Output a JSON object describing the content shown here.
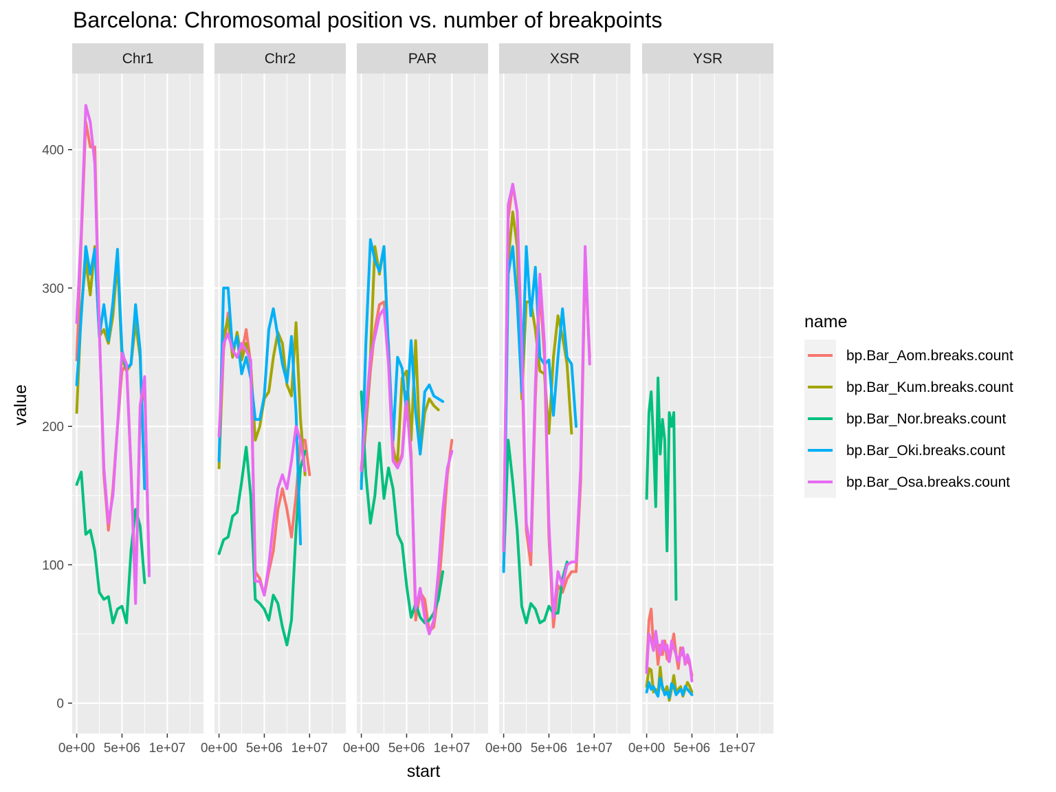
{
  "chart_data": {
    "type": "line",
    "title": "Barcelona: Chromosomal position vs. number of breakpoints",
    "xlabel": "start",
    "ylabel": "value",
    "ylim": [
      -22,
      455
    ],
    "xlim": [
      -500000,
      14000000
    ],
    "y_ticks": [
      0,
      100,
      200,
      300,
      400
    ],
    "y_tick_labels": [
      "0",
      "100",
      "200",
      "300",
      "400"
    ],
    "x_ticks": [
      0,
      5000000,
      10000000
    ],
    "x_tick_labels": [
      "0e+00",
      "5e+06",
      "1e+07"
    ],
    "grid": true,
    "legend": {
      "title": "name",
      "position": "right"
    },
    "facets": [
      "Chr1",
      "Chr2",
      "PAR",
      "XSR",
      "YSR"
    ],
    "series": [
      {
        "name": "bp.Bar_Aom.breaks.count",
        "color": "#F8766D"
      },
      {
        "name": "bp.Bar_Kum.breaks.count",
        "color": "#A3A500"
      },
      {
        "name": "bp.Bar_Nor.breaks.count",
        "color": "#00BF7D"
      },
      {
        "name": "bp.Bar_Oki.breaks.count",
        "color": "#00B0F6"
      },
      {
        "name": "bp.Bar_Osa.breaks.count",
        "color": "#E76BF3"
      }
    ],
    "panels": [
      {
        "facet": "Chr1",
        "x": [
          0,
          500000,
          1000000,
          1500000,
          2000000,
          2500000,
          3000000,
          3500000,
          4000000,
          4500000,
          5000000,
          5500000,
          6000000,
          6500000,
          7000000,
          7500000,
          8000000,
          8500000,
          9000000,
          9500000,
          10000000
        ],
        "values": [
          [
            248,
            335,
            420,
            402,
            402,
            270,
            165,
            125,
            155,
            200,
            240,
            245,
            170,
            80,
            210,
            230,
            95,
            null,
            null,
            null,
            null
          ],
          [
            210,
            285,
            320,
            295,
            330,
            265,
            270,
            260,
            280,
            320,
            250,
            240,
            245,
            275,
            250,
            155,
            null,
            null,
            null,
            null,
            null
          ],
          [
            158,
            167,
            122,
            125,
            110,
            80,
            75,
            77,
            58,
            68,
            70,
            58,
            110,
            140,
            128,
            87,
            null,
            null,
            null,
            null,
            null
          ],
          [
            230,
            280,
            330,
            310,
            328,
            265,
            288,
            262,
            290,
            328,
            255,
            242,
            245,
            288,
            255,
            155,
            null,
            null,
            null,
            null,
            null
          ],
          [
            275,
            340,
            432,
            420,
            390,
            270,
            170,
            130,
            150,
            200,
            253,
            245,
            168,
            72,
            215,
            236,
            92,
            null,
            null,
            null,
            null
          ]
        ]
      },
      {
        "facet": "Chr2",
        "x": [
          0,
          500000,
          1000000,
          1500000,
          2000000,
          2500000,
          3000000,
          3500000,
          4000000,
          4500000,
          5000000,
          5500000,
          6000000,
          6500000,
          7000000,
          7500000,
          8000000,
          8500000,
          9000000,
          9500000,
          10000000,
          10500000,
          11000000,
          11500000,
          12000000,
          12500000,
          13000000
        ],
        "values": [
          [
            175,
            255,
            282,
            255,
            250,
            252,
            270,
            245,
            95,
            90,
            78,
            95,
            110,
            140,
            155,
            140,
            120,
            150,
            190,
            190,
            165,
            null,
            null,
            null,
            null,
            null,
            null
          ],
          [
            170,
            265,
            278,
            250,
            268,
            248,
            260,
            245,
            190,
            200,
            220,
            225,
            250,
            268,
            260,
            230,
            222,
            275,
            205,
            165,
            null,
            null,
            null,
            null,
            null,
            null,
            null
          ],
          [
            108,
            118,
            120,
            135,
            138,
            160,
            185,
            150,
            75,
            72,
            68,
            60,
            78,
            72,
            55,
            42,
            60,
            125,
            170,
            182,
            null,
            null,
            null,
            null,
            null,
            null,
            null
          ],
          [
            175,
            300,
            300,
            255,
            265,
            238,
            250,
            235,
            205,
            205,
            222,
            270,
            285,
            265,
            245,
            232,
            265,
            210,
            115,
            null,
            null,
            null,
            null,
            null,
            null,
            null,
            null
          ],
          [
            193,
            260,
            267,
            255,
            250,
            260,
            255,
            248,
            88,
            88,
            78,
            100,
            130,
            155,
            165,
            155,
            175,
            200,
            190,
            168,
            null,
            null,
            null,
            null,
            null,
            null,
            null
          ]
        ]
      },
      {
        "facet": "PAR",
        "x": [
          0,
          500000,
          1000000,
          1500000,
          2000000,
          2500000,
          3000000,
          3500000,
          4000000,
          4500000,
          5000000,
          5500000,
          6000000,
          6500000,
          7000000,
          7500000,
          8000000,
          8500000,
          9000000,
          9500000,
          10000000,
          10500000,
          11000000,
          11500000,
          12000000,
          12500000,
          13000000
        ],
        "values": [
          [
            170,
            200,
            240,
            270,
            288,
            290,
            260,
            185,
            170,
            180,
            225,
            180,
            60,
            80,
            75,
            52,
            55,
            80,
            120,
            165,
            190,
            null,
            null,
            null,
            null,
            null,
            null
          ],
          [
            160,
            200,
            250,
            330,
            310,
            330,
            250,
            180,
            175,
            235,
            240,
            190,
            262,
            180,
            210,
            220,
            215,
            212,
            null,
            null,
            null,
            null,
            null,
            null,
            null,
            null,
            null
          ],
          [
            225,
            165,
            130,
            150,
            188,
            148,
            170,
            155,
            122,
            115,
            85,
            62,
            72,
            62,
            58,
            60,
            65,
            75,
            95,
            null,
            null,
            null,
            null,
            null,
            null,
            null,
            null
          ],
          [
            155,
            260,
            335,
            320,
            312,
            330,
            255,
            190,
            250,
            242,
            210,
            262,
            210,
            180,
            225,
            230,
            222,
            220,
            218,
            null,
            null,
            null,
            null,
            null,
            null,
            null,
            null
          ],
          [
            168,
            210,
            250,
            265,
            280,
            285,
            245,
            175,
            170,
            178,
            218,
            175,
            68,
            83,
            62,
            50,
            60,
            95,
            140,
            170,
            182,
            null,
            null,
            null,
            null,
            null,
            null
          ]
        ]
      },
      {
        "facet": "XSR",
        "x": [
          0,
          500000,
          1000000,
          1500000,
          2000000,
          2500000,
          3000000,
          3500000,
          4000000,
          4500000,
          5000000,
          5500000,
          6000000,
          6500000,
          7000000,
          7500000,
          8000000,
          8500000,
          9000000,
          9500000,
          10000000,
          10500000,
          11000000,
          11500000,
          12000000
        ],
        "values": [
          [
            115,
            350,
            375,
            355,
            250,
            125,
            100,
            220,
            300,
            250,
            120,
            55,
            85,
            80,
            90,
            95,
            95,
            160,
            320,
            250,
            null,
            null,
            null,
            null,
            null
          ],
          [
            110,
            320,
            355,
            330,
            220,
            290,
            290,
            270,
            240,
            238,
            195,
            250,
            280,
            265,
            245,
            195,
            null,
            null,
            null,
            null,
            null,
            null,
            null,
            null,
            null
          ],
          [
            98,
            190,
            160,
            125,
            70,
            58,
            72,
            68,
            58,
            60,
            70,
            65,
            65,
            90,
            102,
            null,
            null,
            null,
            null,
            null,
            null,
            null,
            null,
            null,
            null
          ],
          [
            95,
            310,
            330,
            290,
            225,
            330,
            280,
            315,
            250,
            245,
            248,
            208,
            250,
            285,
            250,
            245,
            200,
            null,
            null,
            null,
            null,
            null,
            null,
            null,
            null
          ],
          [
            110,
            360,
            375,
            355,
            260,
            130,
            110,
            230,
            310,
            260,
            130,
            62,
            95,
            85,
            100,
            102,
            102,
            170,
            330,
            245,
            null,
            null,
            null,
            null,
            null
          ]
        ]
      },
      {
        "facet": "YSR",
        "x": [
          0,
          250000,
          500000,
          750000,
          1000000,
          1250000,
          1500000,
          1750000,
          2000000,
          2250000,
          2500000,
          2750000,
          3000000,
          3250000,
          3500000,
          3750000,
          4000000,
          4250000,
          4500000,
          4750000,
          5000000
        ],
        "values": [
          [
            25,
            60,
            68,
            40,
            48,
            28,
            42,
            35,
            45,
            32,
            30,
            40,
            50,
            35,
            25,
            40,
            35,
            32,
            30,
            28,
            20
          ],
          [
            12,
            25,
            24,
            8,
            10,
            6,
            26,
            10,
            8,
            12,
            2,
            10,
            20,
            8,
            10,
            12,
            5,
            10,
            15,
            12,
            8
          ],
          [
            148,
            210,
            225,
            190,
            142,
            235,
            180,
            205,
            190,
            110,
            210,
            200,
            210,
            75,
            null,
            null,
            null,
            null,
            null,
            null,
            null
          ],
          [
            8,
            15,
            10,
            12,
            8,
            5,
            18,
            12,
            6,
            8,
            4,
            14,
            12,
            6,
            8,
            10,
            6,
            12,
            10,
            8,
            6
          ],
          [
            22,
            50,
            45,
            38,
            52,
            40,
            35,
            45,
            38,
            42,
            30,
            45,
            40,
            35,
            30,
            35,
            40,
            28,
            35,
            30,
            16
          ]
        ]
      }
    ]
  }
}
